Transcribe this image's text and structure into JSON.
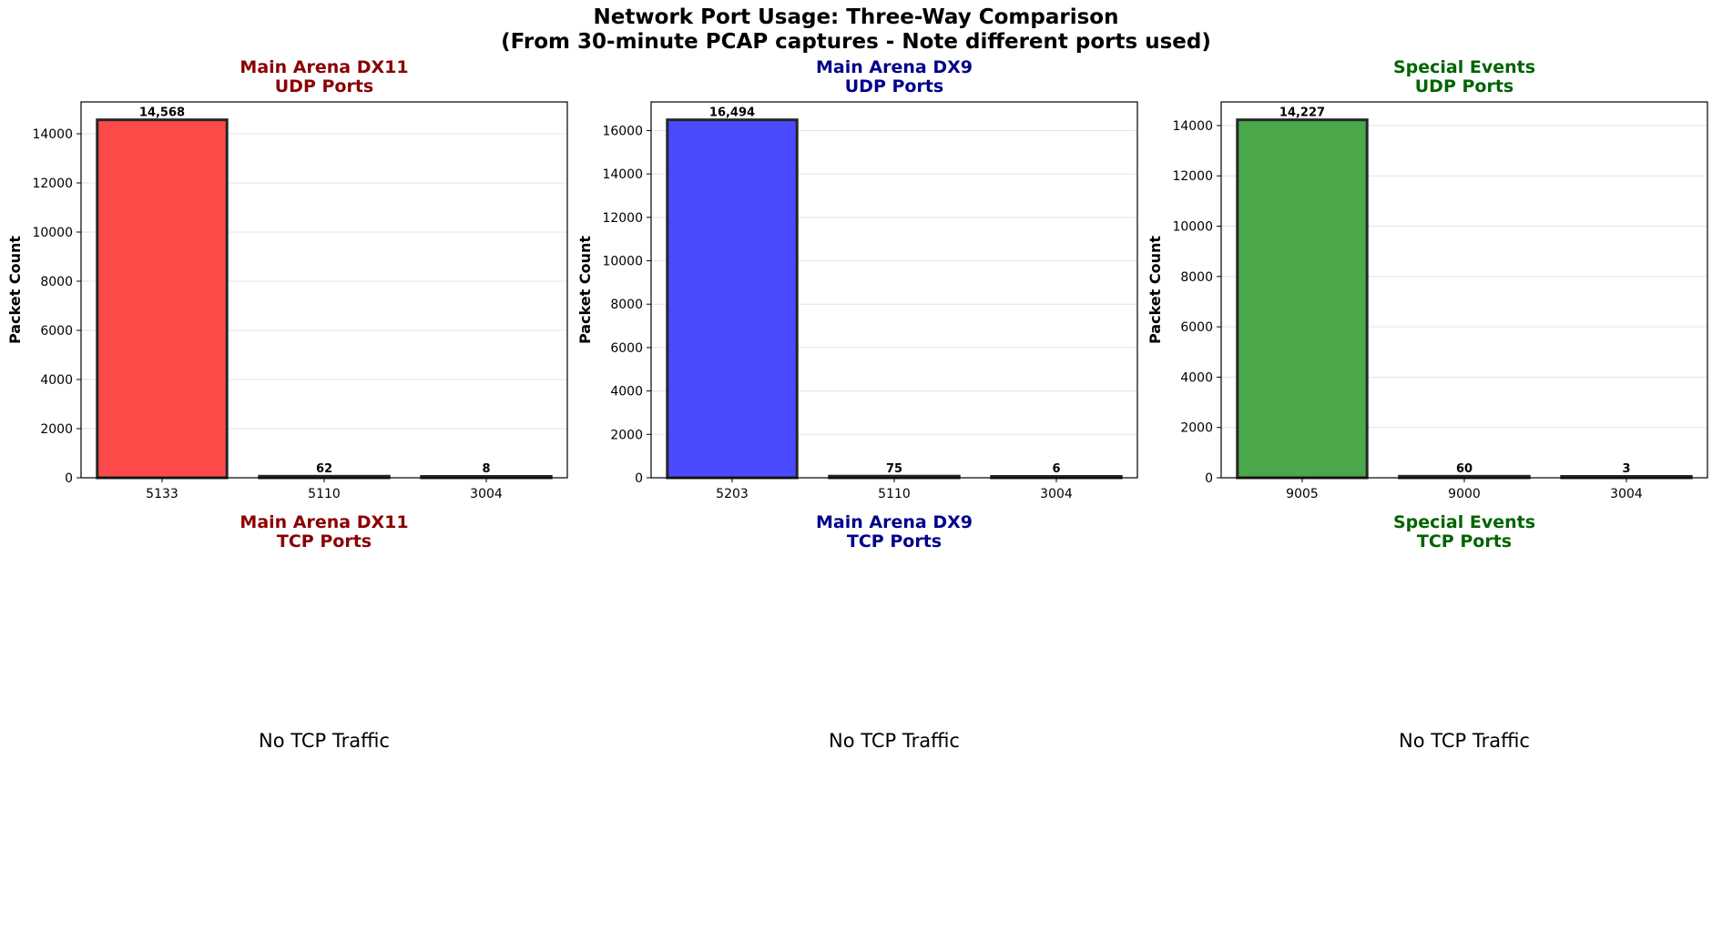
{
  "suptitle": {
    "line1": "Network Port Usage: Three-Way Comparison",
    "line2": "(From 30-minute PCAP captures - Note different ports used)"
  },
  "chart_data": [
    {
      "type": "bar",
      "title_line1": "Main Arena DX11",
      "title_line2": "UDP Ports",
      "title_color": "#8b0000",
      "bar_color": "#ff4a4a",
      "ylabel": "Packet Count",
      "categories": [
        "5133",
        "5110",
        "3004"
      ],
      "values": [
        14568,
        62,
        8
      ],
      "value_labels": [
        "14,568",
        "62",
        "8"
      ],
      "ylim": [
        0,
        15296
      ],
      "yticks": [
        0,
        2000,
        4000,
        6000,
        8000,
        10000,
        12000,
        14000
      ],
      "grid": true
    },
    {
      "type": "bar",
      "title_line1": "Main Arena DX9",
      "title_line2": "UDP Ports",
      "title_color": "#00008b",
      "bar_color": "#4a4aff",
      "ylabel": "Packet Count",
      "categories": [
        "5203",
        "5110",
        "3004"
      ],
      "values": [
        16494,
        75,
        6
      ],
      "value_labels": [
        "16,494",
        "75",
        "6"
      ],
      "ylim": [
        0,
        17319
      ],
      "yticks": [
        0,
        2000,
        4000,
        6000,
        8000,
        10000,
        12000,
        14000,
        16000
      ],
      "grid": true
    },
    {
      "type": "bar",
      "title_line1": "Special Events",
      "title_line2": "UDP Ports",
      "title_color": "#006400",
      "bar_color": "#4aa74a",
      "ylabel": "Packet Count",
      "categories": [
        "9005",
        "9000",
        "3004"
      ],
      "values": [
        14227,
        60,
        3
      ],
      "value_labels": [
        "14,227",
        "60",
        "3"
      ],
      "ylim": [
        0,
        14938
      ],
      "yticks": [
        0,
        2000,
        4000,
        6000,
        8000,
        10000,
        12000,
        14000
      ],
      "grid": true
    }
  ],
  "tcp_panels": [
    {
      "title_line1": "Main Arena DX11",
      "title_line2": "TCP Ports",
      "title_color": "#8b0000",
      "message": "No TCP Traffic"
    },
    {
      "title_line1": "Main Arena DX9",
      "title_line2": "TCP Ports",
      "title_color": "#00008b",
      "message": "No TCP Traffic"
    },
    {
      "title_line1": "Special Events",
      "title_line2": "TCP Ports",
      "title_color": "#006400",
      "message": "No TCP Traffic"
    }
  ]
}
